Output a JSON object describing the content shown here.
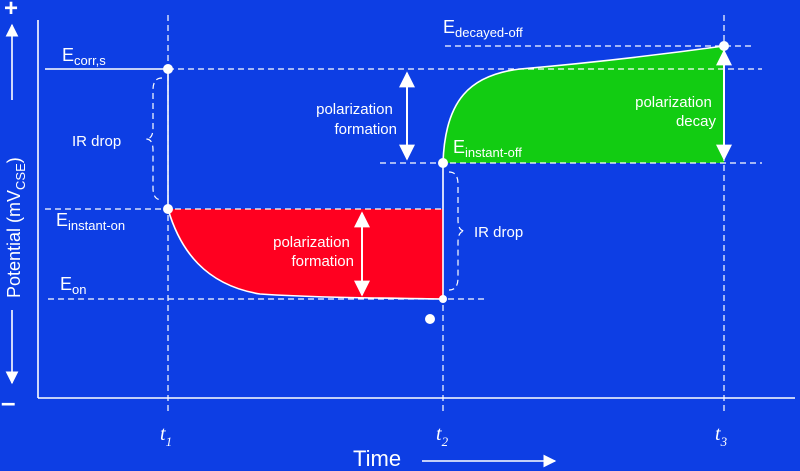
{
  "colors": {
    "background": "#0d3ee4",
    "formation_fill": "#ff0020",
    "decay_fill": "#12cc12",
    "line": "#ffffff"
  },
  "axes": {
    "y_label_main": "Potential (mV",
    "y_label_sub": "CSE",
    "y_label_close": ")",
    "y_plus": "+",
    "y_minus": "–",
    "x_label": "Time"
  },
  "levels": {
    "e_corr": {
      "main": "E",
      "sub": "corr,s"
    },
    "e_instant_on": {
      "main": "E",
      "sub": "instant-on"
    },
    "e_on": {
      "main": "E",
      "sub": "on"
    },
    "e_instant_off": {
      "main": "E",
      "sub": "instant-off"
    },
    "e_decayed_off": {
      "main": "E",
      "sub": "decayed-off"
    }
  },
  "times": [
    {
      "main": "t",
      "sub": "1"
    },
    {
      "main": "t",
      "sub": "2"
    },
    {
      "main": "t",
      "sub": "3"
    }
  ],
  "annotations": {
    "ir_drop_left": "IR drop",
    "ir_drop_right": "IR drop",
    "formation_top_line1": "polarization",
    "formation_top_line2": "formation",
    "formation_red_line1": "polarization",
    "formation_red_line2": "formation",
    "decay_line1": "polarization",
    "decay_line2": "decay"
  }
}
